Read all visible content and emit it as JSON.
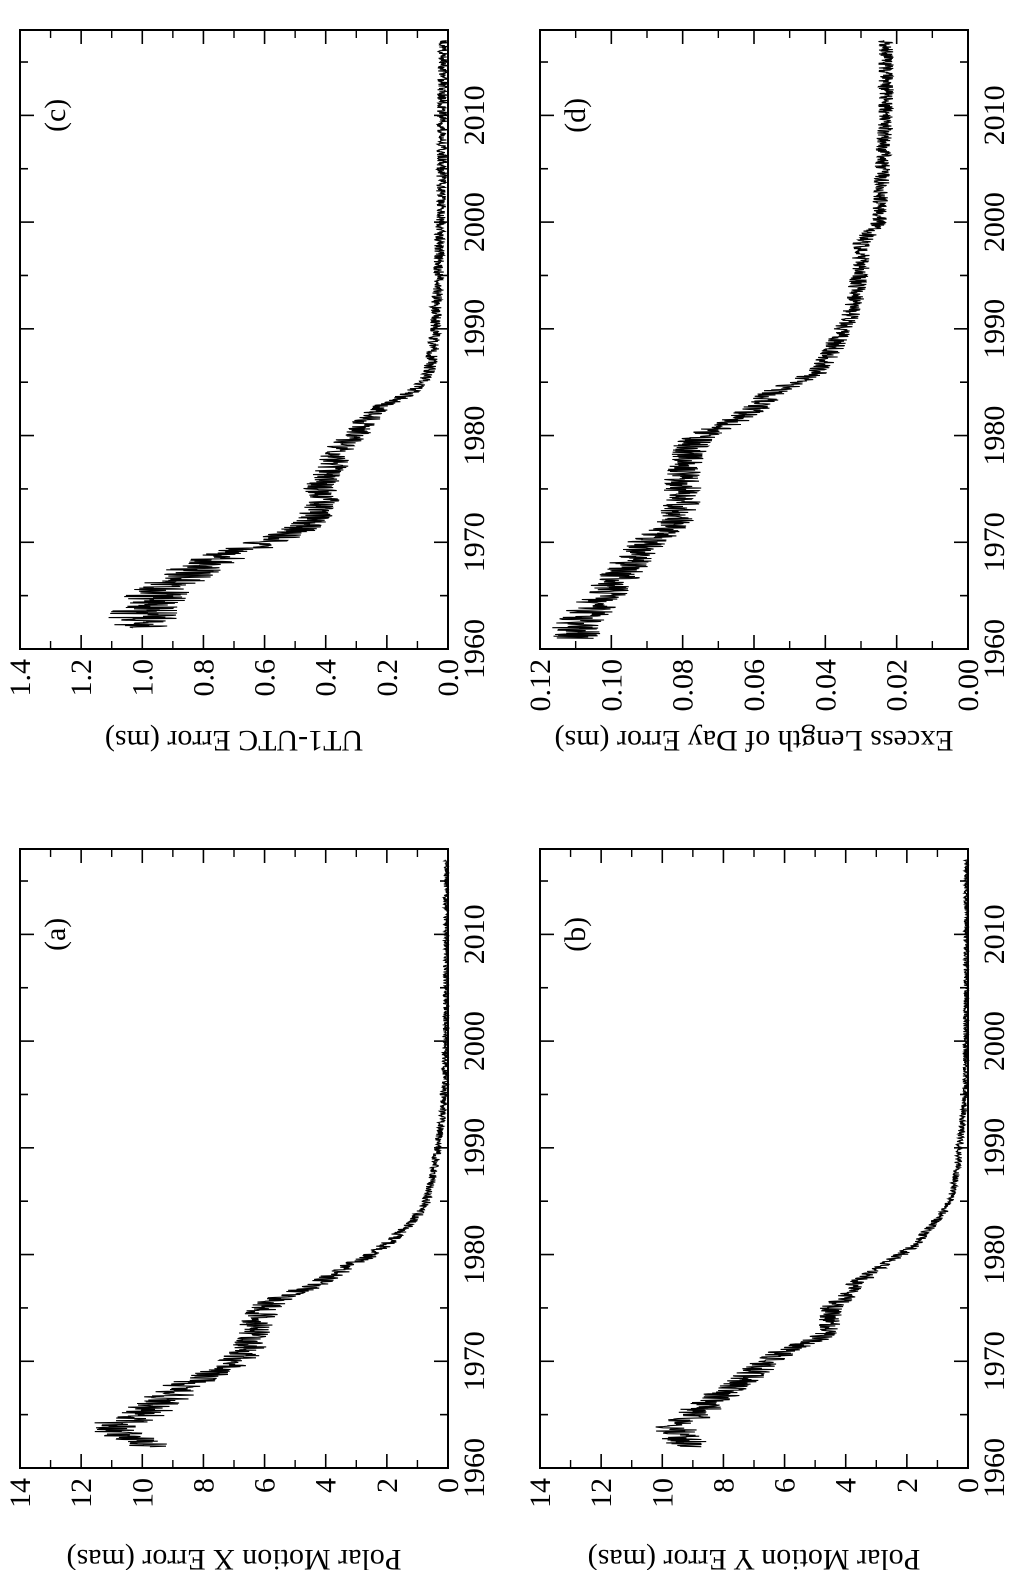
{
  "chart_data": [
    {
      "type": "line",
      "panel_label": "(a)",
      "ylabel": "Polar Motion X Error (mas)",
      "xlim": [
        1960,
        2018
      ],
      "ylim": [
        0,
        14
      ],
      "x_ticks": [
        1960,
        1970,
        1980,
        1990,
        2000,
        2010
      ],
      "y_ticks": [
        0,
        2,
        4,
        6,
        8,
        10,
        12,
        14
      ],
      "y_tick_labels": [
        "0",
        "2",
        "4",
        "6",
        "8",
        "10",
        "12",
        "14"
      ],
      "x": [
        1962,
        1963,
        1964,
        1965,
        1966,
        1967,
        1968,
        1969,
        1970,
        1971,
        1972,
        1973,
        1974,
        1975,
        1976,
        1977,
        1978,
        1979,
        1980,
        1981,
        1982,
        1983,
        1984,
        1985,
        1986,
        1988,
        1990,
        1992,
        1994,
        1996,
        2000,
        2005,
        2010,
        2017
      ],
      "values": [
        9.5,
        10.5,
        11.0,
        10.0,
        9.5,
        9.0,
        8.5,
        7.5,
        7.0,
        6.5,
        6.5,
        6.3,
        6.2,
        6.0,
        5.5,
        4.5,
        3.8,
        3.2,
        2.5,
        2.0,
        1.6,
        1.2,
        0.9,
        0.7,
        0.6,
        0.45,
        0.35,
        0.25,
        0.15,
        0.1,
        0.07,
        0.05,
        0.04,
        0.03
      ],
      "noise": 0.7
    },
    {
      "type": "line",
      "panel_label": "(b)",
      "ylabel": "Polar Motion Y Error (mas)",
      "xlim": [
        1960,
        2018
      ],
      "ylim": [
        0,
        14
      ],
      "x_ticks": [
        1960,
        1970,
        1980,
        1990,
        2000,
        2010
      ],
      "y_ticks": [
        0,
        2,
        4,
        6,
        8,
        10,
        12,
        14
      ],
      "y_tick_labels": [
        "0",
        "2",
        "4",
        "6",
        "8",
        "10",
        "12",
        "14"
      ],
      "x": [
        1962,
        1963,
        1964,
        1965,
        1966,
        1967,
        1968,
        1969,
        1970,
        1971,
        1972,
        1973,
        1974,
        1975,
        1976,
        1977,
        1978,
        1979,
        1980,
        1981,
        1982,
        1983,
        1984,
        1985,
        1986,
        1988,
        1990,
        1992,
        1994,
        1996,
        2000,
        2005,
        2010,
        2017
      ],
      "values": [
        9.0,
        9.5,
        9.5,
        9.0,
        8.5,
        8.0,
        7.5,
        7.0,
        6.5,
        6.0,
        5.0,
        4.5,
        4.5,
        4.5,
        4.0,
        3.8,
        3.3,
        2.8,
        2.2,
        1.7,
        1.4,
        1.1,
        0.8,
        0.6,
        0.5,
        0.35,
        0.28,
        0.2,
        0.12,
        0.08,
        0.06,
        0.05,
        0.04,
        0.03
      ],
      "noise": 0.6
    },
    {
      "type": "line",
      "panel_label": "(c)",
      "ylabel": "UT1-UTC Error (ms)",
      "xlim": [
        1960,
        2018
      ],
      "ylim": [
        0,
        1.4
      ],
      "x_ticks": [
        1960,
        1970,
        1980,
        1990,
        2000,
        2010
      ],
      "y_ticks": [
        0,
        0.2,
        0.4,
        0.6,
        0.8,
        1.0,
        1.2,
        1.4
      ],
      "y_tick_labels": [
        "0.0",
        "0.2",
        "0.4",
        "0.6",
        "0.8",
        "1.0",
        "1.2",
        "1.4"
      ],
      "x": [
        1962,
        1963,
        1964,
        1965,
        1966,
        1967,
        1968,
        1969,
        1970,
        1971,
        1972,
        1973,
        1974,
        1975,
        1976,
        1977,
        1978,
        1979,
        1980,
        1981,
        1982,
        1983,
        1984,
        1985,
        1986,
        1988,
        1990,
        1992,
        1994,
        1996,
        2000,
        2005,
        2010,
        2017
      ],
      "values": [
        1.0,
        1.0,
        1.0,
        0.95,
        0.9,
        0.85,
        0.8,
        0.7,
        0.6,
        0.5,
        0.45,
        0.42,
        0.4,
        0.42,
        0.4,
        0.38,
        0.37,
        0.35,
        0.3,
        0.28,
        0.25,
        0.2,
        0.12,
        0.08,
        0.06,
        0.05,
        0.04,
        0.04,
        0.03,
        0.03,
        0.025,
        0.02,
        0.02,
        0.015
      ],
      "noise": 0.1
    },
    {
      "type": "line",
      "panel_label": "(d)",
      "ylabel": "Excess Length of Day Error (ms)",
      "xlim": [
        1960,
        2018
      ],
      "ylim": [
        0,
        0.12
      ],
      "x_ticks": [
        1960,
        1970,
        1980,
        1990,
        2000,
        2010
      ],
      "y_ticks": [
        0,
        0.02,
        0.04,
        0.06,
        0.08,
        0.1,
        0.12
      ],
      "y_tick_labels": [
        "0.00",
        "0.02",
        "0.04",
        "0.06",
        "0.08",
        "0.10",
        "0.12"
      ],
      "x": [
        1961,
        1962,
        1964,
        1966,
        1968,
        1970,
        1971,
        1972,
        1974,
        1976,
        1978,
        1979,
        1980,
        1981,
        1982,
        1983,
        1984,
        1985,
        1986,
        1988,
        1990,
        1992,
        1994,
        1996,
        1998,
        2000,
        2005,
        2010,
        2017
      ],
      "values": [
        0.11,
        0.11,
        0.105,
        0.1,
        0.095,
        0.09,
        0.085,
        0.082,
        0.08,
        0.08,
        0.079,
        0.078,
        0.075,
        0.068,
        0.062,
        0.058,
        0.055,
        0.048,
        0.042,
        0.038,
        0.035,
        0.032,
        0.031,
        0.03,
        0.03,
        0.025,
        0.024,
        0.023,
        0.023
      ],
      "noise": 0.006
    }
  ]
}
